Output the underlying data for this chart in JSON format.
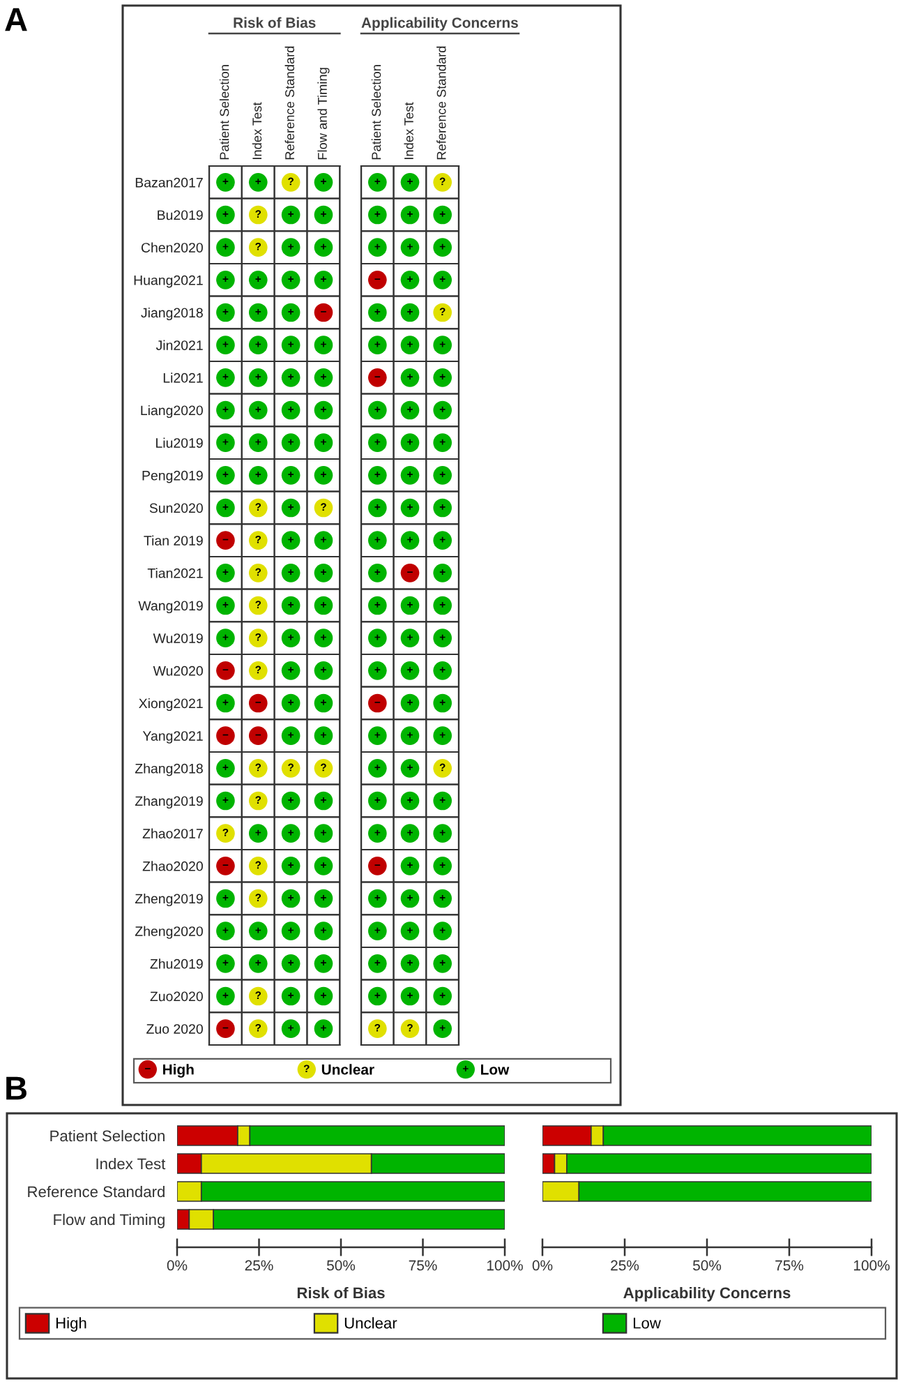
{
  "chart_data": [
    {
      "type": "heatmap",
      "title": "Risk of Bias",
      "annotations": [
        "A"
      ],
      "legend": "bottom",
      "categories": [
        "Patient Selection",
        "Index Test",
        "Reference Standard",
        "Flow and Timing"
      ],
      "y_categories": [
        "Bazan2017",
        "Bu2019",
        "Chen2020",
        "Huang2021",
        "Jiang2018",
        "Jin2021",
        "Li2021",
        "Liang2020",
        "Liu2019",
        "Peng2019",
        "Sun2020",
        "Tian 2019",
        "Tian2021",
        "Wang2019",
        "Wu2019",
        "Wu2020",
        "Xiong2021",
        "Yang2021",
        "Zhang2018",
        "Zhang2019",
        "Zhao2017",
        "Zhao2020",
        "Zheng2019",
        "Zheng2020",
        "Zhu2019",
        "Zuo2020",
        "Zuo 2020"
      ],
      "series": [
        {
          "name": "High",
          "color": "#c00000",
          "values": [
            null,
            null,
            null,
            null
          ]
        },
        {
          "name": "Unclear",
          "color": "#e0e000",
          "values": [
            null,
            null,
            null,
            null
          ]
        },
        {
          "name": "Low",
          "color": "#00b400",
          "values": [
            null,
            null,
            null,
            null
          ]
        }
      ],
      "cells": [
        [
          "+",
          "+",
          "?",
          "+"
        ],
        [
          "+",
          "?",
          "+",
          "+"
        ],
        [
          "+",
          "?",
          "+",
          "+"
        ],
        [
          "+",
          "+",
          "+",
          "+"
        ],
        [
          "+",
          "+",
          "+",
          "−"
        ],
        [
          "+",
          "+",
          "+",
          "+"
        ],
        [
          "+",
          "+",
          "+",
          "+"
        ],
        [
          "+",
          "+",
          "+",
          "+"
        ],
        [
          "+",
          "+",
          "+",
          "+"
        ],
        [
          "+",
          "+",
          "+",
          "+"
        ],
        [
          "+",
          "?",
          "+",
          "?"
        ],
        [
          "−",
          "?",
          "+",
          "+"
        ],
        [
          "+",
          "?",
          "+",
          "+"
        ],
        [
          "+",
          "?",
          "+",
          "+"
        ],
        [
          "+",
          "?",
          "+",
          "+"
        ],
        [
          "−",
          "?",
          "+",
          "+"
        ],
        [
          "+",
          "−",
          "+",
          "+"
        ],
        [
          "−",
          "−",
          "+",
          "+"
        ],
        [
          "+",
          "?",
          "?",
          "?"
        ],
        [
          "+",
          "?",
          "+",
          "+"
        ],
        [
          "?",
          "+",
          "+",
          "+"
        ],
        [
          "−",
          "?",
          "+",
          "+"
        ],
        [
          "+",
          "?",
          "+",
          "+"
        ],
        [
          "+",
          "+",
          "+",
          "+"
        ],
        [
          "+",
          "+",
          "+",
          "+"
        ],
        [
          "+",
          "?",
          "+",
          "+"
        ],
        [
          "−",
          "?",
          "+",
          "+"
        ]
      ],
      "colors": [
        [
          "#00b400",
          "#00b400",
          "#e0e000",
          "#00b400"
        ],
        [
          "#00b400",
          "#e0e000",
          "#00b400",
          "#00b400"
        ],
        [
          "#00b400",
          "#e0e000",
          "#00b400",
          "#00b400"
        ],
        [
          "#00b400",
          "#00b400",
          "#00b400",
          "#00b400"
        ],
        [
          "#00b400",
          "#00b400",
          "#00b400",
          "#c00000"
        ],
        [
          "#00b400",
          "#00b400",
          "#00b400",
          "#00b400"
        ],
        [
          "#00b400",
          "#00b400",
          "#00b400",
          "#00b400"
        ],
        [
          "#00b400",
          "#00b400",
          "#00b400",
          "#00b400"
        ],
        [
          "#00b400",
          "#00b400",
          "#00b400",
          "#00b400"
        ],
        [
          "#00b400",
          "#00b400",
          "#00b400",
          "#00b400"
        ],
        [
          "#00b400",
          "#e0e000",
          "#00b400",
          "#e0e000"
        ],
        [
          "#c00000",
          "#e0e000",
          "#00b400",
          "#00b400"
        ],
        [
          "#00b400",
          "#e0e000",
          "#00b400",
          "#00b400"
        ],
        [
          "#00b400",
          "#e0e000",
          "#00b400",
          "#00b400"
        ],
        [
          "#00b400",
          "#e0e000",
          "#00b400",
          "#00b400"
        ],
        [
          "#c00000",
          "#e0e000",
          "#00b400",
          "#00b400"
        ],
        [
          "#00b400",
          "#c00000",
          "#00b400",
          "#00b400"
        ],
        [
          "#c00000",
          "#c00000",
          "#00b400",
          "#00b400"
        ],
        [
          "#00b400",
          "#e0e000",
          "#e0e000",
          "#e0e000"
        ],
        [
          "#00b400",
          "#e0e000",
          "#00b400",
          "#00b400"
        ],
        [
          "#e0e000",
          "#00b400",
          "#00b400",
          "#00b400"
        ],
        [
          "#c00000",
          "#e0e000",
          "#00b400",
          "#00b400"
        ],
        [
          "#00b400",
          "#e0e000",
          "#00b400",
          "#00b400"
        ],
        [
          "#00b400",
          "#00b400",
          "#00b400",
          "#00b400"
        ],
        [
          "#00b400",
          "#00b400",
          "#00b400",
          "#00b400"
        ],
        [
          "#00b400",
          "#e0e000",
          "#00b400",
          "#00b400"
        ],
        [
          "#c00000",
          "#e0e000",
          "#00b400",
          "#00b400"
        ]
      ]
    },
    {
      "type": "heatmap",
      "title": "Applicability Concerns",
      "categories": [
        "Patient Selection",
        "Index Test",
        "Reference Standard"
      ],
      "y_categories": [
        null,
        null,
        null,
        null,
        null,
        null,
        null,
        null,
        null,
        null,
        null,
        null,
        null,
        null,
        null,
        null,
        null,
        null,
        null,
        null,
        null,
        null,
        null,
        null,
        null,
        null,
        null
      ],
      "cells": [
        [
          "+",
          "+",
          "?"
        ],
        [
          "+",
          "+",
          "+"
        ],
        [
          "+",
          "+",
          "+"
        ],
        [
          "−",
          "+",
          "+"
        ],
        [
          "+",
          "+",
          "?"
        ],
        [
          "+",
          "+",
          "+"
        ],
        [
          "−",
          "+",
          "+"
        ],
        [
          "+",
          "+",
          "+"
        ],
        [
          "+",
          "+",
          "+"
        ],
        [
          "+",
          "+",
          "+"
        ],
        [
          "+",
          "+",
          "+"
        ],
        [
          "+",
          "+",
          "+"
        ],
        [
          "+",
          "−",
          "+"
        ],
        [
          "+",
          "+",
          "+"
        ],
        [
          "+",
          "+",
          "+"
        ],
        [
          "+",
          "+",
          "+"
        ],
        [
          "−",
          "+",
          "+"
        ],
        [
          "+",
          "+",
          "+"
        ],
        [
          "+",
          "+",
          "?"
        ],
        [
          "+",
          "+",
          "+"
        ],
        [
          "+",
          "+",
          "+"
        ],
        [
          "−",
          "+",
          "+"
        ],
        [
          "+",
          "+",
          "+"
        ],
        [
          "+",
          "+",
          "+"
        ],
        [
          "+",
          "+",
          "+"
        ],
        [
          "+",
          "+",
          "+"
        ],
        [
          "?",
          "?",
          "+"
        ]
      ],
      "colors": [
        [
          "#00b400",
          "#00b400",
          "#e0e000"
        ],
        [
          "#00b400",
          "#00b400",
          "#00b400"
        ],
        [
          "#00b400",
          "#00b400",
          "#00b400"
        ],
        [
          "#c00000",
          "#00b400",
          "#00b400"
        ],
        [
          "#00b400",
          "#00b400",
          "#e0e000"
        ],
        [
          "#00b400",
          "#00b400",
          "#00b400"
        ],
        [
          "#c00000",
          "#00b400",
          "#00b400"
        ],
        [
          "#00b400",
          "#00b400",
          "#00b400"
        ],
        [
          "#00b400",
          "#00b400",
          "#00b400"
        ],
        [
          "#00b400",
          "#00b400",
          "#00b400"
        ],
        [
          "#00b400",
          "#00b400",
          "#00b400"
        ],
        [
          "#00b400",
          "#00b400",
          "#00b400"
        ],
        [
          "#00b400",
          "#c00000",
          "#00b400"
        ],
        [
          "#00b400",
          "#00b400",
          "#00b400"
        ],
        [
          "#00b400",
          "#00b400",
          "#00b400"
        ],
        [
          "#00b400",
          "#00b400",
          "#00b400"
        ],
        [
          "#c00000",
          "#00b400",
          "#00b400"
        ],
        [
          "#00b400",
          "#00b400",
          "#00b400"
        ],
        [
          "#00b400",
          "#00b400",
          "#e0e000"
        ],
        [
          "#00b400",
          "#00b400",
          "#00b400"
        ],
        [
          "#00b400",
          "#00b400",
          "#00b400"
        ],
        [
          "#c00000",
          "#00b400",
          "#00b400"
        ],
        [
          "#00b400",
          "#00b400",
          "#00b400"
        ],
        [
          "#00b400",
          "#00b400",
          "#00b400"
        ],
        [
          "#00b400",
          "#00b400",
          "#00b400"
        ],
        [
          "#00b400",
          "#00b400",
          "#00b400"
        ],
        [
          "#e0e000",
          "#e0e000",
          "#00b400"
        ]
      ]
    },
    {
      "type": "bar",
      "orientation": "horizontal",
      "stacked": true,
      "annotations": [
        "B"
      ],
      "legend": "bottom",
      "xlabel": "Risk of Bias",
      "categories": [
        "Patient Selection",
        "Index Test",
        "Reference Standard",
        "Flow and Timing"
      ],
      "series": [
        {
          "name": "High",
          "color": "#cc0000",
          "values": [
            18.5,
            7.4,
            0,
            3.7
          ]
        },
        {
          "name": "Unclear",
          "color": "#e0e000",
          "values": [
            3.7,
            51.9,
            7.4,
            7.4
          ]
        },
        {
          "name": "Low",
          "color": "#00b400",
          "values": [
            77.8,
            40.7,
            92.6,
            88.9
          ]
        }
      ],
      "xlim": [
        0,
        100
      ],
      "xticks": [
        {
          "value": 0,
          "label": "0%"
        },
        {
          "value": 25,
          "label": "25%"
        },
        {
          "value": 50,
          "label": "50%"
        },
        {
          "value": 75,
          "label": "75%"
        },
        {
          "value": 100,
          "label": "100%"
        }
      ]
    },
    {
      "type": "bar",
      "orientation": "horizontal",
      "stacked": true,
      "xlabel": "Applicability Concerns",
      "categories": [
        null,
        null,
        null,
        null
      ],
      "series": [
        {
          "color": "#cc0000",
          "values": [
            14.8,
            3.7,
            0,
            null
          ]
        },
        {
          "color": "#e0e000",
          "values": [
            3.7,
            3.7,
            11.1,
            null
          ]
        },
        {
          "color": "#00b400",
          "values": [
            81.5,
            92.6,
            88.9,
            null
          ]
        }
      ],
      "xlim": [
        0,
        100
      ],
      "xticks": [
        {
          "value": 0,
          "label": "0%"
        },
        {
          "value": 25,
          "label": "25%"
        },
        {
          "value": 50,
          "label": "50%"
        },
        {
          "value": 75,
          "label": "75%"
        },
        {
          "value": 100,
          "label": "100%"
        }
      ]
    }
  ]
}
